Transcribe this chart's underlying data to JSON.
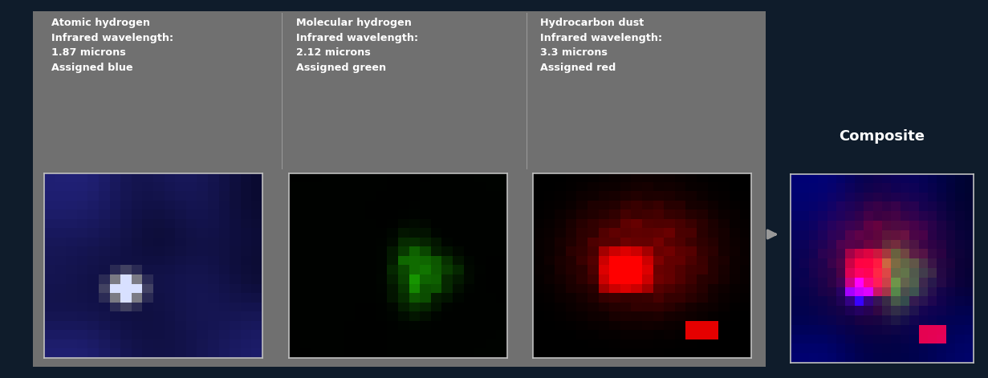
{
  "background_color": "#0f1c2b",
  "panel_bg": "#707070",
  "title_text_color": "#ffffff",
  "image_border_color": "#c0c0c0",
  "figure_width": 12.31,
  "figure_height": 4.71,
  "composite_label": "Composite",
  "labels": [
    "Atomic hydrogen\nInfrared wavelength:\n1.87 microns\nAssigned blue",
    "Molecular hydrogen\nInfrared wavelength:\n2.12 microns\nAssigned green",
    "Hydrocarbon dust\nInfrared wavelength:\n3.3 microns\nAssigned red"
  ]
}
